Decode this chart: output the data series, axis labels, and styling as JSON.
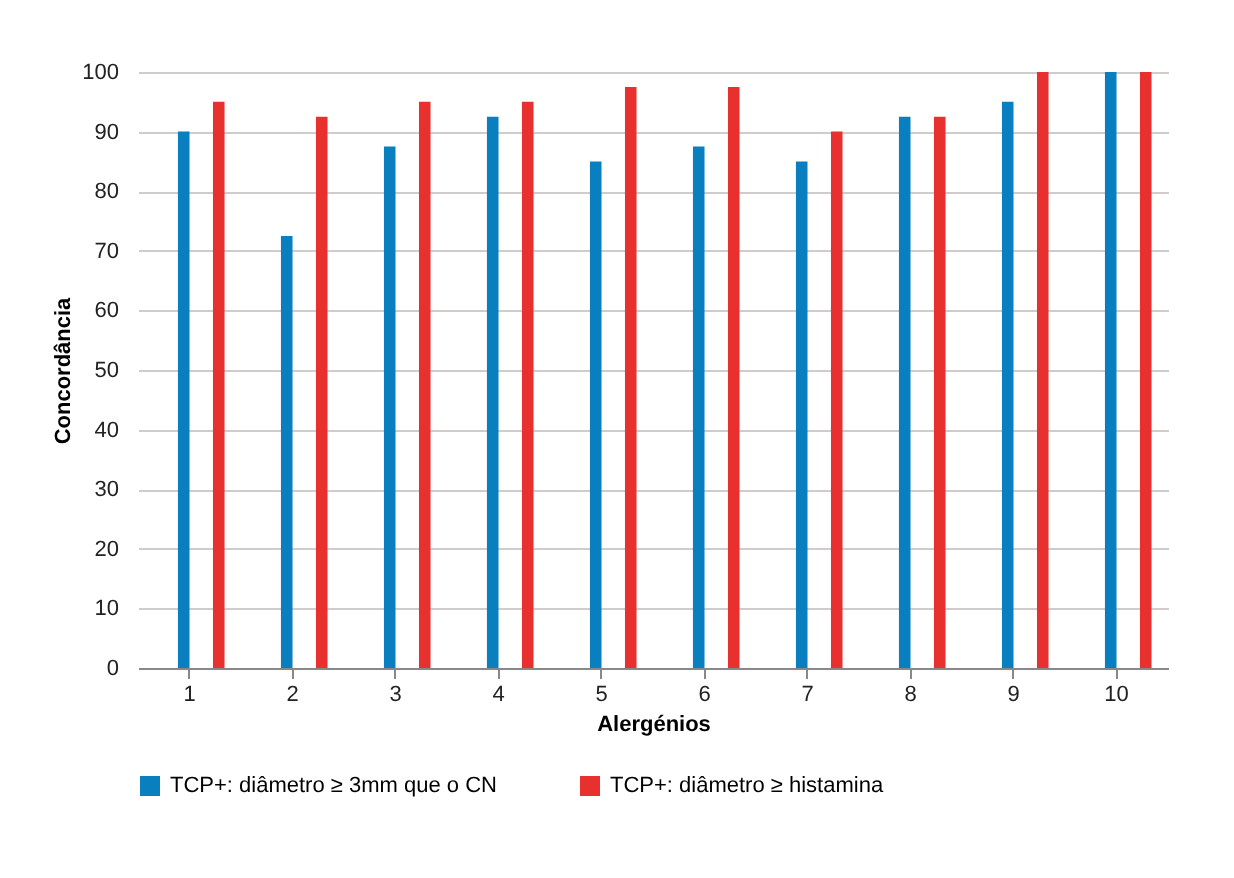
{
  "chart_data": {
    "type": "bar",
    "xlabel": "Alergénios",
    "ylabel": "Concordância",
    "categories": [
      "1",
      "2",
      "3",
      "4",
      "5",
      "6",
      "7",
      "8",
      "9",
      "10"
    ],
    "series": [
      {
        "name": "TCP+: diâmetro ≥ 3mm que o CN",
        "color": "#0a7fc0",
        "values": [
          90,
          72.5,
          87.5,
          92.5,
          85,
          87.5,
          85,
          92.5,
          95,
          100
        ]
      },
      {
        "name": "TCP+: diâmetro ≥ histamina",
        "color": "#e8312f",
        "values": [
          95,
          92.5,
          95,
          95,
          97.5,
          97.5,
          90,
          92.5,
          100,
          100
        ]
      }
    ],
    "ylim": [
      0,
      100
    ],
    "yticks": [
      0,
      10,
      20,
      30,
      40,
      50,
      60,
      70,
      80,
      90,
      100
    ],
    "grid": "y",
    "legend": "bottom"
  }
}
